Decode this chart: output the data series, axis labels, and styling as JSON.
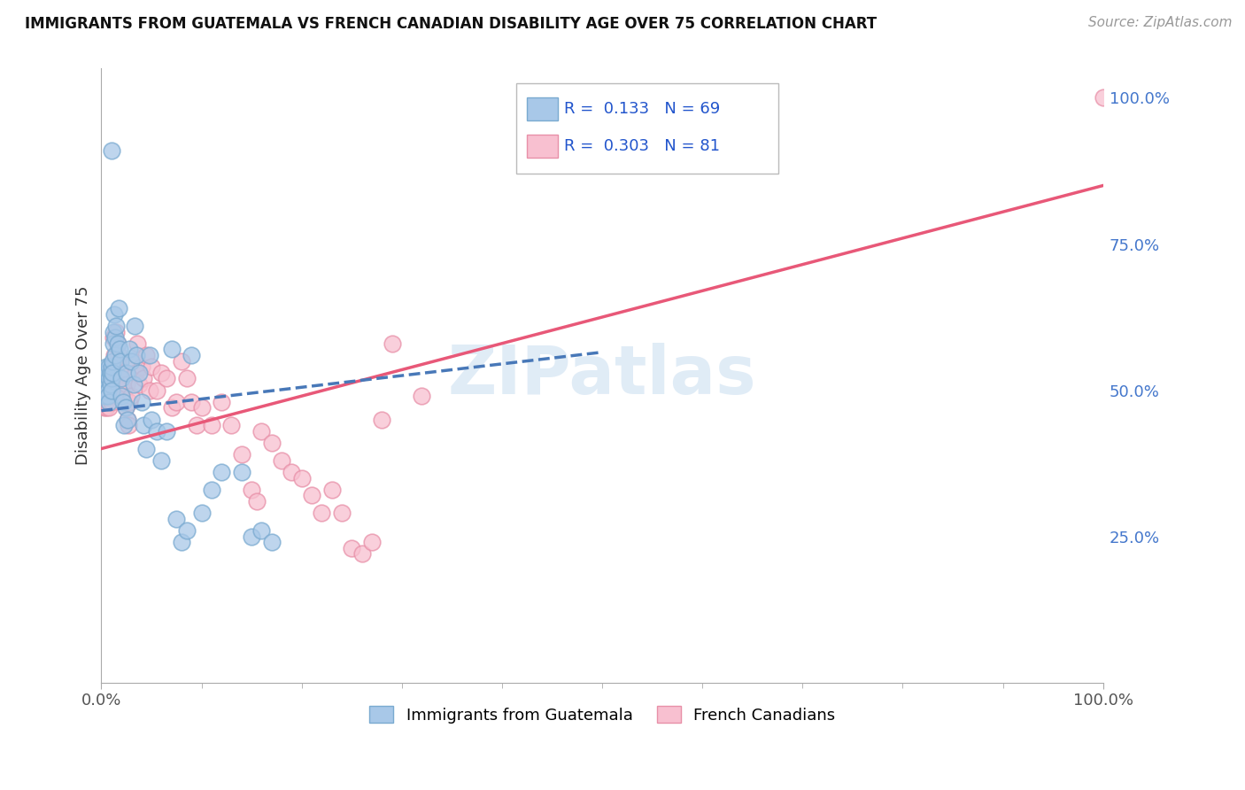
{
  "title": "IMMIGRANTS FROM GUATEMALA VS FRENCH CANADIAN DISABILITY AGE OVER 75 CORRELATION CHART",
  "source": "Source: ZipAtlas.com",
  "ylabel": "Disability Age Over 75",
  "legend_bottom": [
    "Immigrants from Guatemala",
    "French Canadians"
  ],
  "blue_R": "0.133",
  "blue_N": "69",
  "pink_R": "0.303",
  "pink_N": "81",
  "watermark": "ZIPatlas",
  "blue_color": "#a8c8e8",
  "blue_edge": "#7aaad0",
  "pink_color": "#f8c0d0",
  "pink_edge": "#e890a8",
  "blue_line_color": "#4878b8",
  "pink_line_color": "#e85878",
  "blue_scatter": [
    [
      0.002,
      0.52
    ],
    [
      0.003,
      0.51
    ],
    [
      0.003,
      0.5
    ],
    [
      0.004,
      0.53
    ],
    [
      0.004,
      0.5
    ],
    [
      0.004,
      0.49
    ],
    [
      0.005,
      0.52
    ],
    [
      0.005,
      0.51
    ],
    [
      0.005,
      0.54
    ],
    [
      0.006,
      0.52
    ],
    [
      0.006,
      0.5
    ],
    [
      0.006,
      0.53
    ],
    [
      0.007,
      0.51
    ],
    [
      0.007,
      0.5
    ],
    [
      0.007,
      0.49
    ],
    [
      0.008,
      0.52
    ],
    [
      0.008,
      0.54
    ],
    [
      0.008,
      0.48
    ],
    [
      0.009,
      0.53
    ],
    [
      0.009,
      0.51
    ],
    [
      0.01,
      0.52
    ],
    [
      0.01,
      0.5
    ],
    [
      0.01,
      0.54
    ],
    [
      0.011,
      0.55
    ],
    [
      0.011,
      0.53
    ],
    [
      0.012,
      0.6
    ],
    [
      0.012,
      0.58
    ],
    [
      0.013,
      0.63
    ],
    [
      0.014,
      0.59
    ],
    [
      0.014,
      0.56
    ],
    [
      0.015,
      0.61
    ],
    [
      0.016,
      0.58
    ],
    [
      0.017,
      0.64
    ],
    [
      0.018,
      0.57
    ],
    [
      0.019,
      0.55
    ],
    [
      0.02,
      0.52
    ],
    [
      0.02,
      0.49
    ],
    [
      0.022,
      0.48
    ],
    [
      0.023,
      0.44
    ],
    [
      0.024,
      0.47
    ],
    [
      0.025,
      0.53
    ],
    [
      0.026,
      0.45
    ],
    [
      0.028,
      0.57
    ],
    [
      0.03,
      0.55
    ],
    [
      0.032,
      0.51
    ],
    [
      0.033,
      0.61
    ],
    [
      0.035,
      0.56
    ],
    [
      0.038,
      0.53
    ],
    [
      0.04,
      0.48
    ],
    [
      0.042,
      0.44
    ],
    [
      0.045,
      0.4
    ],
    [
      0.048,
      0.56
    ],
    [
      0.05,
      0.45
    ],
    [
      0.055,
      0.43
    ],
    [
      0.06,
      0.38
    ],
    [
      0.065,
      0.43
    ],
    [
      0.07,
      0.57
    ],
    [
      0.075,
      0.28
    ],
    [
      0.08,
      0.24
    ],
    [
      0.085,
      0.26
    ],
    [
      0.09,
      0.56
    ],
    [
      0.1,
      0.29
    ],
    [
      0.11,
      0.33
    ],
    [
      0.12,
      0.36
    ],
    [
      0.14,
      0.36
    ],
    [
      0.15,
      0.25
    ],
    [
      0.16,
      0.26
    ],
    [
      0.17,
      0.24
    ],
    [
      0.01,
      0.91
    ]
  ],
  "pink_scatter": [
    [
      0.002,
      0.48
    ],
    [
      0.003,
      0.5
    ],
    [
      0.003,
      0.47
    ],
    [
      0.004,
      0.51
    ],
    [
      0.004,
      0.49
    ],
    [
      0.005,
      0.5
    ],
    [
      0.005,
      0.47
    ],
    [
      0.005,
      0.53
    ],
    [
      0.006,
      0.51
    ],
    [
      0.006,
      0.49
    ],
    [
      0.007,
      0.52
    ],
    [
      0.007,
      0.48
    ],
    [
      0.008,
      0.5
    ],
    [
      0.008,
      0.47
    ],
    [
      0.009,
      0.53
    ],
    [
      0.009,
      0.51
    ],
    [
      0.01,
      0.49
    ],
    [
      0.01,
      0.48
    ],
    [
      0.011,
      0.52
    ],
    [
      0.011,
      0.5
    ],
    [
      0.012,
      0.59
    ],
    [
      0.013,
      0.54
    ],
    [
      0.013,
      0.56
    ],
    [
      0.014,
      0.52
    ],
    [
      0.015,
      0.6
    ],
    [
      0.015,
      0.54
    ],
    [
      0.016,
      0.58
    ],
    [
      0.017,
      0.56
    ],
    [
      0.018,
      0.55
    ],
    [
      0.019,
      0.53
    ],
    [
      0.02,
      0.51
    ],
    [
      0.021,
      0.5
    ],
    [
      0.022,
      0.53
    ],
    [
      0.023,
      0.49
    ],
    [
      0.024,
      0.47
    ],
    [
      0.025,
      0.51
    ],
    [
      0.026,
      0.45
    ],
    [
      0.027,
      0.44
    ],
    [
      0.028,
      0.48
    ],
    [
      0.03,
      0.49
    ],
    [
      0.032,
      0.55
    ],
    [
      0.034,
      0.53
    ],
    [
      0.036,
      0.58
    ],
    [
      0.038,
      0.51
    ],
    [
      0.04,
      0.54
    ],
    [
      0.042,
      0.52
    ],
    [
      0.045,
      0.56
    ],
    [
      0.048,
      0.5
    ],
    [
      0.05,
      0.54
    ],
    [
      0.055,
      0.5
    ],
    [
      0.06,
      0.53
    ],
    [
      0.065,
      0.52
    ],
    [
      0.07,
      0.47
    ],
    [
      0.075,
      0.48
    ],
    [
      0.08,
      0.55
    ],
    [
      0.085,
      0.52
    ],
    [
      0.09,
      0.48
    ],
    [
      0.095,
      0.44
    ],
    [
      0.1,
      0.47
    ],
    [
      0.11,
      0.44
    ],
    [
      0.12,
      0.48
    ],
    [
      0.13,
      0.44
    ],
    [
      0.14,
      0.39
    ],
    [
      0.15,
      0.33
    ],
    [
      0.155,
      0.31
    ],
    [
      0.16,
      0.43
    ],
    [
      0.17,
      0.41
    ],
    [
      0.18,
      0.38
    ],
    [
      0.19,
      0.36
    ],
    [
      0.2,
      0.35
    ],
    [
      0.21,
      0.32
    ],
    [
      0.22,
      0.29
    ],
    [
      0.23,
      0.33
    ],
    [
      0.24,
      0.29
    ],
    [
      0.25,
      0.23
    ],
    [
      0.26,
      0.22
    ],
    [
      0.27,
      0.24
    ],
    [
      0.28,
      0.45
    ],
    [
      0.29,
      0.58
    ],
    [
      0.32,
      0.49
    ],
    [
      1.0,
      1.0
    ]
  ],
  "xlim": [
    0.0,
    1.0
  ],
  "ylim": [
    0.0,
    1.05
  ],
  "blue_line_x": [
    0.0,
    0.5
  ],
  "blue_line_y": [
    0.465,
    0.565
  ],
  "pink_line_x": [
    0.0,
    1.0
  ],
  "pink_line_y": [
    0.4,
    0.85
  ],
  "figsize": [
    14.06,
    8.92
  ],
  "dpi": 100
}
